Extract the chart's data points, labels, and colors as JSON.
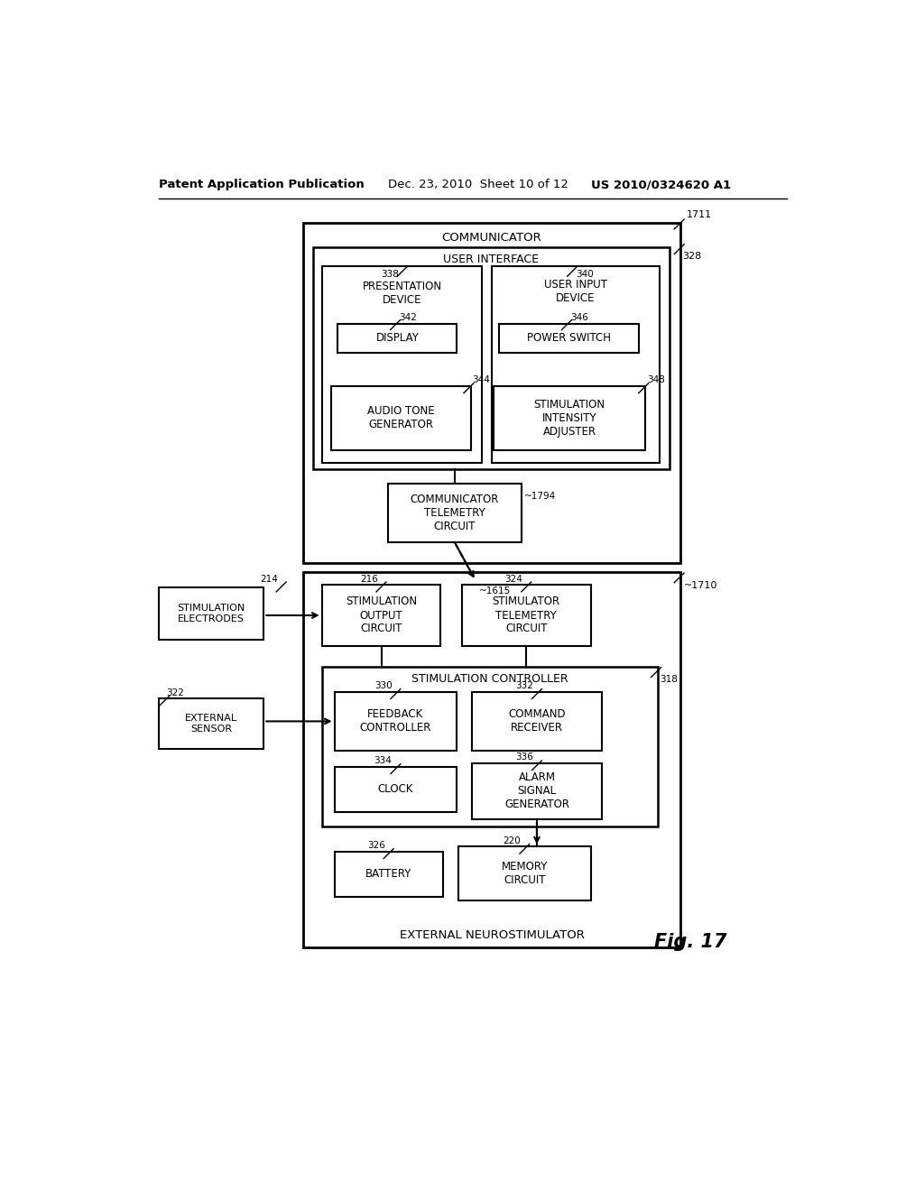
{
  "header_left": "Patent Application Publication",
  "header_mid": "Dec. 23, 2010  Sheet 10 of 12",
  "header_right": "US 2010/0324620 A1",
  "fig_label": "Fig. 17",
  "bg_color": "#ffffff",
  "communicator_label": "COMMUNICATOR",
  "ref_1711": "1711",
  "ref_328": "328",
  "user_interface_label": "USER INTERFACE",
  "presentation_device_label": "PRESENTATION\nDEVICE",
  "ref_338": "338",
  "user_input_device_label": "USER INPUT\nDEVICE",
  "ref_340": "340",
  "display_label": "DISPLAY",
  "ref_342": "342",
  "power_switch_label": "POWER SWITCH",
  "ref_346": "346",
  "audio_tone_label": "AUDIO TONE\nGENERATOR",
  "ref_344": "344",
  "stim_intensity_label": "STIMULATION\nINTENSITY\nADJUSTER",
  "ref_348": "348",
  "comm_telemetry_label": "COMMUNICATOR\nTELEMETRY\nCIRCUIT",
  "ref_1794": "~1794",
  "ref_1615": "~1615",
  "ext_neuro_label": "EXTERNAL NEUROSTIMULATOR",
  "ref_1710": "~1710",
  "stim_output_label": "STIMULATION\nOUTPUT\nCIRCUIT",
  "ref_216": "216",
  "stim_telemetry_label": "STIMULATOR\nTELEMETRY\nCIRCUIT",
  "ref_324": "324",
  "stim_electrodes_label": "STIMULATION\nELECTRODES",
  "ref_214": "214",
  "stim_controller_label": "STIMULATION CONTROLLER",
  "ref_318": "318",
  "feedback_controller_label": "FEEDBACK\nCONTROLLER",
  "ref_330": "330",
  "command_receiver_label": "COMMAND\nRECEIVER",
  "ref_332": "332",
  "external_sensor_label": "EXTERNAL\nSENSOR",
  "ref_322": "322",
  "clock_label": "CLOCK",
  "ref_334": "334",
  "alarm_signal_label": "ALARM\nSIGNAL\nGENERATOR",
  "ref_336": "336",
  "battery_label": "BATTERY",
  "ref_326": "326",
  "memory_label": "MEMORY\nCIRCUIT",
  "ref_220": "220"
}
